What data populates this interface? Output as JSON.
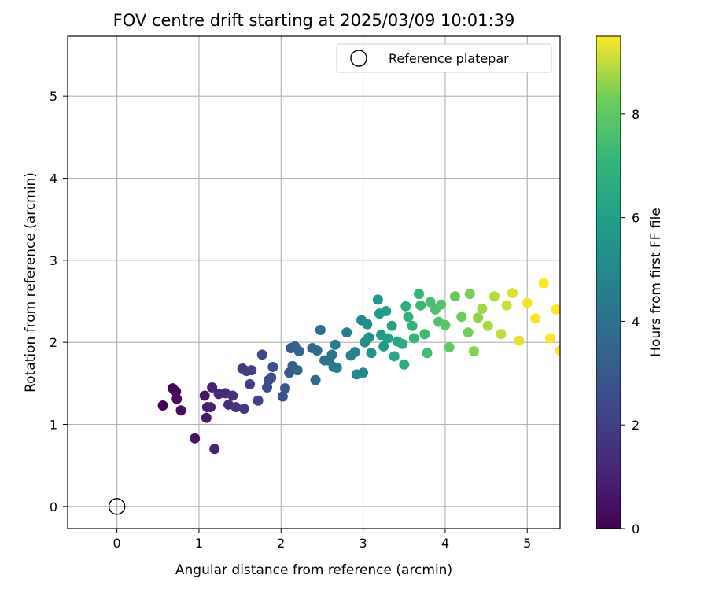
{
  "chart_data": {
    "type": "scatter",
    "title": "FOV centre drift starting at 2025/03/09 10:01:39",
    "xlabel": "Angular distance from reference (arcmin)",
    "ylabel": "Rotation from reference (arcmin)",
    "xlim": [
      -0.6,
      5.4
    ],
    "ylim": [
      -0.27,
      5.73
    ],
    "xticks": [
      0,
      1,
      2,
      3,
      4,
      5
    ],
    "yticks": [
      0,
      1,
      2,
      3,
      4,
      5
    ],
    "grid": true,
    "legend": {
      "position": "top-right",
      "entries": [
        "Reference platepar"
      ]
    },
    "reference_point": {
      "x": 0,
      "y": 0,
      "label": "Reference platepar"
    },
    "colorbar": {
      "label": "Hours from first FF file",
      "min": 0,
      "max": 9.5,
      "ticks": [
        0,
        2,
        4,
        6,
        8
      ],
      "colormap": "viridis"
    },
    "series": [
      {
        "color_by": "hours",
        "points": [
          [
            0.56,
            1.23,
            0.0
          ],
          [
            0.68,
            1.44,
            0.1
          ],
          [
            0.72,
            1.4,
            0.2
          ],
          [
            0.73,
            1.31,
            0.3
          ],
          [
            0.78,
            1.17,
            0.4
          ],
          [
            0.95,
            0.83,
            0.5
          ],
          [
            1.07,
            1.35,
            0.6
          ],
          [
            1.09,
            1.08,
            0.7
          ],
          [
            1.1,
            1.21,
            0.8
          ],
          [
            1.14,
            1.21,
            0.9
          ],
          [
            1.16,
            1.45,
            1.0
          ],
          [
            1.19,
            0.7,
            1.1
          ],
          [
            1.24,
            1.37,
            1.2
          ],
          [
            1.32,
            1.38,
            1.3
          ],
          [
            1.36,
            1.24,
            1.4
          ],
          [
            1.41,
            1.35,
            1.5
          ],
          [
            1.45,
            1.21,
            1.6
          ],
          [
            1.53,
            1.68,
            1.7
          ],
          [
            1.55,
            1.19,
            1.8
          ],
          [
            1.58,
            1.65,
            1.9
          ],
          [
            1.62,
            1.49,
            2.0
          ],
          [
            1.64,
            1.66,
            2.1
          ],
          [
            1.72,
            1.29,
            2.2
          ],
          [
            1.77,
            1.85,
            2.3
          ],
          [
            1.83,
            1.45,
            2.4
          ],
          [
            1.85,
            1.54,
            2.5
          ],
          [
            1.88,
            1.57,
            2.6
          ],
          [
            1.9,
            1.7,
            2.7
          ],
          [
            2.02,
            1.34,
            2.8
          ],
          [
            2.05,
            1.44,
            2.9
          ],
          [
            2.1,
            1.63,
            3.0
          ],
          [
            2.12,
            1.93,
            3.1
          ],
          [
            2.14,
            1.71,
            3.2
          ],
          [
            2.17,
            1.95,
            3.3
          ],
          [
            2.2,
            1.66,
            3.4
          ],
          [
            2.22,
            1.89,
            3.5
          ],
          [
            2.38,
            1.93,
            3.6
          ],
          [
            2.42,
            1.54,
            3.7
          ],
          [
            2.44,
            1.9,
            3.8
          ],
          [
            2.48,
            2.15,
            3.9
          ],
          [
            2.53,
            1.78,
            4.0
          ],
          [
            2.58,
            1.78,
            4.1
          ],
          [
            2.62,
            1.85,
            4.2
          ],
          [
            2.64,
            1.7,
            4.3
          ],
          [
            2.66,
            1.97,
            4.4
          ],
          [
            2.68,
            1.69,
            4.5
          ],
          [
            2.8,
            2.12,
            4.6
          ],
          [
            2.85,
            1.84,
            4.7
          ],
          [
            2.9,
            1.88,
            4.8
          ],
          [
            2.92,
            1.61,
            4.9
          ],
          [
            2.98,
            2.27,
            5.0
          ],
          [
            3.0,
            1.63,
            5.1
          ],
          [
            3.02,
            2.0,
            5.2
          ],
          [
            3.05,
            2.22,
            5.3
          ],
          [
            3.07,
            2.06,
            5.4
          ],
          [
            3.1,
            1.87,
            5.5
          ],
          [
            3.18,
            2.52,
            5.6
          ],
          [
            3.2,
            2.35,
            5.7
          ],
          [
            3.22,
            2.09,
            5.8
          ],
          [
            3.25,
            1.95,
            5.9
          ],
          [
            3.28,
            2.38,
            6.0
          ],
          [
            3.3,
            2.05,
            6.1
          ],
          [
            3.35,
            2.2,
            6.2
          ],
          [
            3.38,
            1.83,
            6.3
          ],
          [
            3.42,
            2.01,
            6.4
          ],
          [
            3.48,
            1.98,
            6.5
          ],
          [
            3.5,
            1.73,
            6.6
          ],
          [
            3.52,
            2.44,
            6.7
          ],
          [
            3.55,
            2.31,
            6.8
          ],
          [
            3.6,
            2.2,
            6.9
          ],
          [
            3.62,
            2.05,
            7.0
          ],
          [
            3.68,
            2.59,
            7.1
          ],
          [
            3.7,
            2.45,
            7.2
          ],
          [
            3.75,
            2.1,
            7.3
          ],
          [
            3.78,
            1.87,
            7.4
          ],
          [
            3.82,
            2.49,
            7.5
          ],
          [
            3.88,
            2.4,
            7.6
          ],
          [
            3.92,
            2.25,
            7.7
          ],
          [
            3.95,
            2.46,
            7.8
          ],
          [
            4.0,
            2.21,
            7.9
          ],
          [
            4.05,
            1.94,
            8.0
          ],
          [
            4.12,
            2.56,
            8.1
          ],
          [
            4.2,
            2.31,
            8.2
          ],
          [
            4.28,
            2.12,
            8.3
          ],
          [
            4.3,
            2.59,
            8.4
          ],
          [
            4.35,
            1.89,
            8.5
          ],
          [
            4.4,
            2.3,
            8.6
          ],
          [
            4.45,
            2.41,
            8.7
          ],
          [
            4.52,
            2.2,
            8.8
          ],
          [
            4.6,
            2.56,
            8.9
          ],
          [
            4.68,
            2.1,
            9.0
          ],
          [
            4.75,
            2.45,
            9.1
          ],
          [
            4.82,
            2.6,
            9.2
          ],
          [
            4.9,
            2.02,
            9.3
          ],
          [
            5.0,
            2.48,
            9.4
          ],
          [
            5.1,
            2.29,
            9.45
          ],
          [
            5.2,
            2.72,
            9.5
          ],
          [
            5.28,
            2.05,
            9.5
          ],
          [
            5.35,
            2.4,
            9.5
          ],
          [
            5.4,
            1.9,
            9.5
          ]
        ]
      }
    ]
  }
}
